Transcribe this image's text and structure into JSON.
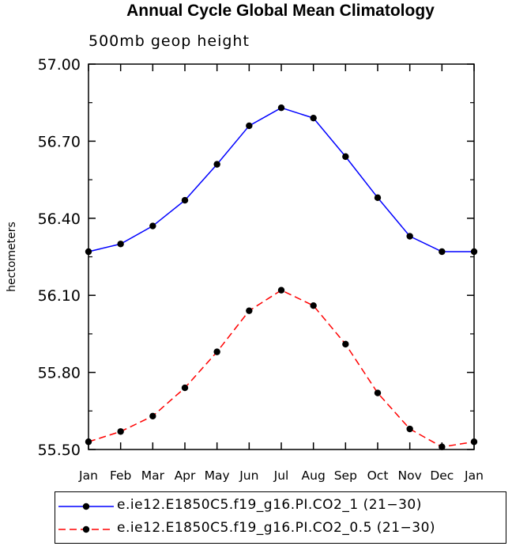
{
  "title": "Annual Cycle Global Mean Climatology",
  "subtitle": "500mb geop height",
  "chart_data": {
    "type": "line",
    "categories": [
      "Jan",
      "Feb",
      "Mar",
      "Apr",
      "May",
      "Jun",
      "Jul",
      "Aug",
      "Sep",
      "Oct",
      "Nov",
      "Dec",
      "Jan"
    ],
    "ylabel": "hectometers",
    "ylim": [
      55.5,
      57.0
    ],
    "yticks": [
      "55.50",
      "55.80",
      "56.10",
      "56.40",
      "56.70",
      "57.00"
    ],
    "series": [
      {
        "name": "e.ie12.E1850C5.f19_g16.PI.CO2_1 (21−30)",
        "color": "#0000ff",
        "dash": "solid",
        "values": [
          56.27,
          56.3,
          56.37,
          56.47,
          56.61,
          56.76,
          56.83,
          56.79,
          56.64,
          56.48,
          56.33,
          56.27,
          56.27
        ]
      },
      {
        "name": "e.ie12.E1850C5.f19_g16.PI.CO2_0.5 (21−30)",
        "color": "#ff0000",
        "dash": "dashed",
        "values": [
          55.53,
          55.57,
          55.63,
          55.74,
          55.88,
          56.04,
          56.12,
          56.06,
          55.91,
          55.72,
          55.58,
          55.51,
          55.53
        ]
      }
    ]
  }
}
